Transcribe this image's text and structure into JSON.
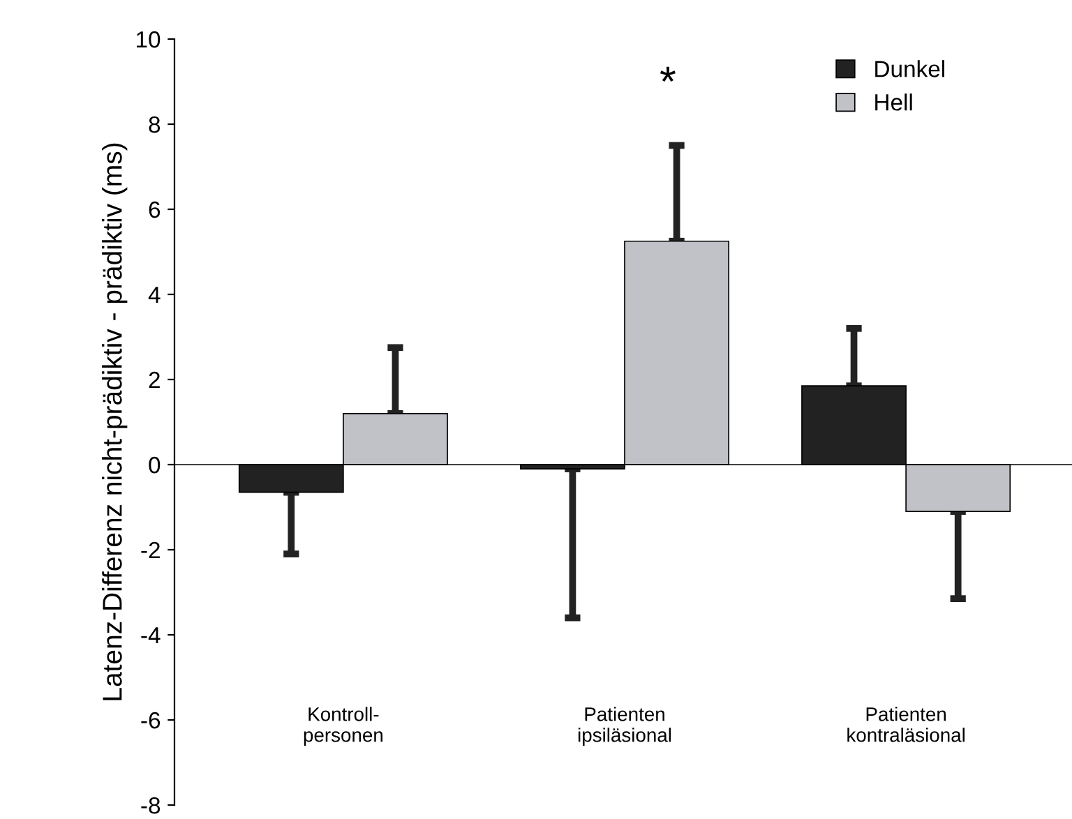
{
  "chart_data": {
    "type": "bar",
    "ylabel": "Latenz-Differenz nicht-prädiktiv - prädiktiv (ms)",
    "categories": [
      "Kontroll-\npersonen",
      "Patienten\nipsiläsional",
      "Patienten\nkontraläsional"
    ],
    "series": [
      {
        "name": "Dunkel",
        "color": "#222222",
        "values": [
          -0.65,
          -0.1,
          1.85
        ],
        "errors": [
          [
            -2.1,
            -0.65
          ],
          [
            -3.6,
            -0.1
          ],
          [
            1.85,
            3.2
          ]
        ]
      },
      {
        "name": "Hell",
        "color": "#c0c2c8",
        "values": [
          1.2,
          5.25,
          -1.1
        ],
        "errors": [
          [
            1.2,
            2.75
          ],
          [
            5.25,
            7.5
          ],
          [
            -3.15,
            -1.1
          ]
        ]
      }
    ],
    "ylim": [
      -8,
      10
    ],
    "yticks": [
      -8,
      -6,
      -4,
      -2,
      0,
      2,
      4,
      6,
      8,
      10
    ],
    "annotations": [
      "*"
    ],
    "legend": "top right"
  }
}
